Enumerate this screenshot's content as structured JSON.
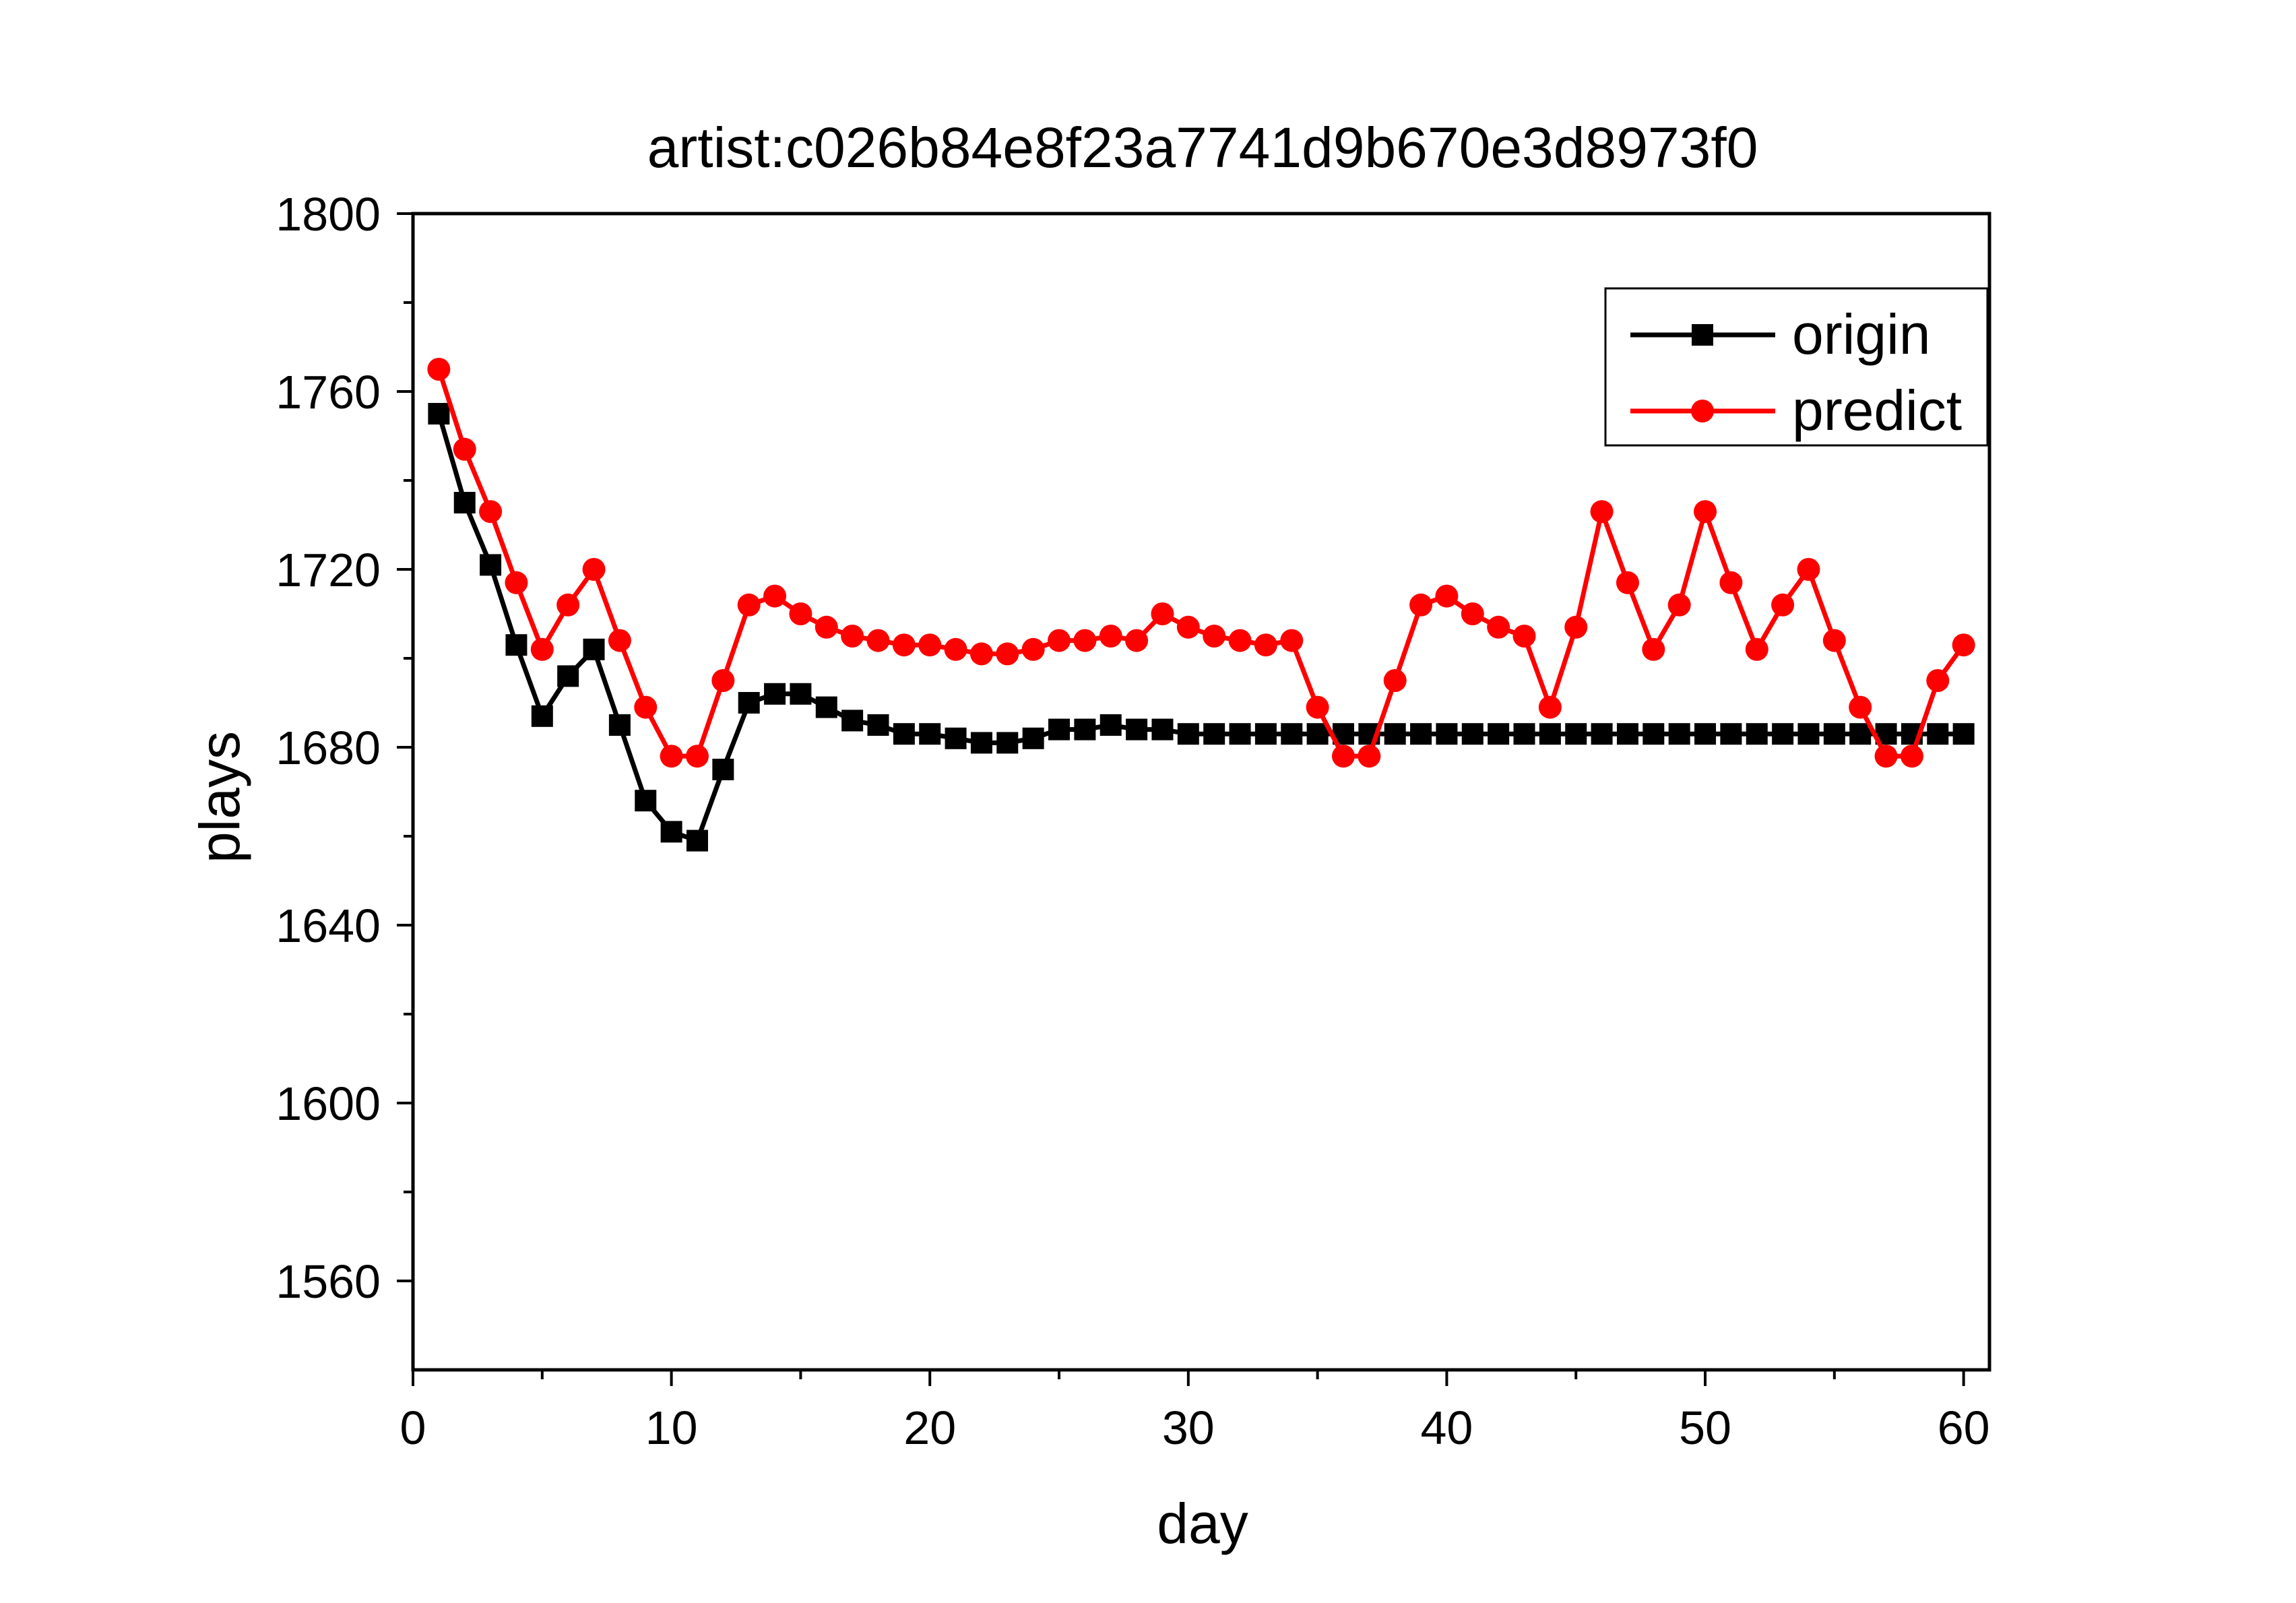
{
  "chart_data": {
    "type": "line",
    "title": "artist:c026b84e8f23a7741d9b670e3d8973f0",
    "xlabel": "day",
    "ylabel": "plays",
    "xlim": [
      0,
      61
    ],
    "ylim": [
      1540,
      1800
    ],
    "xticks": [
      0,
      10,
      20,
      30,
      40,
      50,
      60
    ],
    "yticks": [
      1560,
      1600,
      1640,
      1680,
      1720,
      1760,
      1800
    ],
    "grid": false,
    "legend_position": "top-right",
    "series": [
      {
        "name": "origin",
        "color": "#000000",
        "marker": "square",
        "x": [
          1,
          2,
          3,
          4,
          5,
          6,
          7,
          8,
          9,
          10,
          11,
          12,
          13,
          14,
          15,
          16,
          17,
          18,
          19,
          20,
          21,
          22,
          23,
          24,
          25,
          26,
          27,
          28,
          29,
          30,
          31,
          32,
          33,
          34,
          35,
          36,
          37,
          38,
          39,
          40,
          41,
          42,
          43,
          44,
          45,
          46,
          47,
          48,
          49,
          50,
          51,
          52,
          53,
          54,
          55,
          56,
          57,
          58,
          59,
          60
        ],
        "values": [
          1755,
          1735,
          1721,
          1703,
          1687,
          1696,
          1702,
          1685,
          1668,
          1661,
          1659,
          1675,
          1690,
          1692,
          1692,
          1689,
          1686,
          1685,
          1683,
          1683,
          1682,
          1681,
          1681,
          1682,
          1684,
          1684,
          1685,
          1684,
          1684,
          1683,
          1683,
          1683,
          1683,
          1683,
          1683,
          1683,
          1683,
          1683,
          1683,
          1683,
          1683,
          1683,
          1683,
          1683,
          1683,
          1683,
          1683,
          1683,
          1683,
          1683,
          1683,
          1683,
          1683,
          1683,
          1683,
          1683,
          1683,
          1683,
          1683,
          1683
        ]
      },
      {
        "name": "predict",
        "color": "#ff0000",
        "marker": "circle",
        "x": [
          1,
          2,
          3,
          4,
          5,
          6,
          7,
          8,
          9,
          10,
          11,
          12,
          13,
          14,
          15,
          16,
          17,
          18,
          19,
          20,
          21,
          22,
          23,
          24,
          25,
          26,
          27,
          28,
          29,
          30,
          31,
          32,
          33,
          34,
          35,
          36,
          37,
          38,
          39,
          40,
          41,
          42,
          43,
          44,
          45,
          46,
          47,
          48,
          49,
          50,
          51,
          52,
          53,
          54,
          55,
          56,
          57,
          58,
          59,
          60
        ],
        "values": [
          1765,
          1747,
          1733,
          1717,
          1702,
          1712,
          1720,
          1704,
          1689,
          1678,
          1678,
          1695,
          1712,
          1714,
          1710,
          1707,
          1705,
          1704,
          1703,
          1703,
          1702,
          1701,
          1701,
          1702,
          1704,
          1704,
          1705,
          1704,
          1710,
          1707,
          1705,
          1704,
          1703,
          1704,
          1689,
          1678,
          1678,
          1695,
          1712,
          1714,
          1710,
          1707,
          1705,
          1689,
          1707,
          1733,
          1717,
          1702,
          1712,
          1733,
          1717,
          1702,
          1712,
          1720,
          1704,
          1689,
          1678,
          1678,
          1695,
          1703
        ]
      }
    ]
  }
}
